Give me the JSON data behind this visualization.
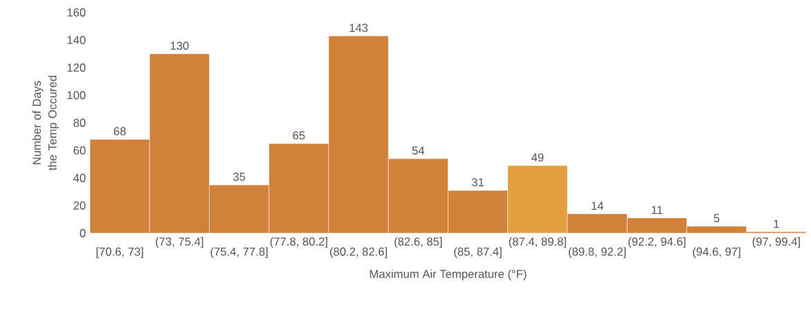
{
  "chart_data": {
    "type": "bar",
    "xlabel": "Maximum Air Temperature (°F)",
    "ylabel": "Number of Days the Temp Occured",
    "categories": [
      "[70.6, 73]",
      "(73, 75.4]",
      "(75.4, 77.8]",
      "(77.8, 80.2]",
      "(80.2, 82.6]",
      "(82.6, 85]",
      "(85, 87.4]",
      "(87.4, 89.8]",
      "(89.8, 92.2]",
      "(92.2, 94.6]",
      "(94.6, 97]",
      "(97, 99.4]"
    ],
    "values": [
      68,
      130,
      35,
      65,
      143,
      54,
      31,
      49,
      14,
      11,
      5,
      1
    ],
    "colors": [
      "#d2813a",
      "#d2813a",
      "#d2813a",
      "#d2813a",
      "#d2813a",
      "#d2813a",
      "#d2813a",
      "#e3a03c",
      "#d2813a",
      "#d2813a",
      "#d2813a",
      "#d2813a"
    ],
    "ylim": [
      0,
      160
    ],
    "yticks": [
      0,
      20,
      40,
      60,
      80,
      100,
      120,
      140,
      160
    ],
    "data_labels": true
  }
}
